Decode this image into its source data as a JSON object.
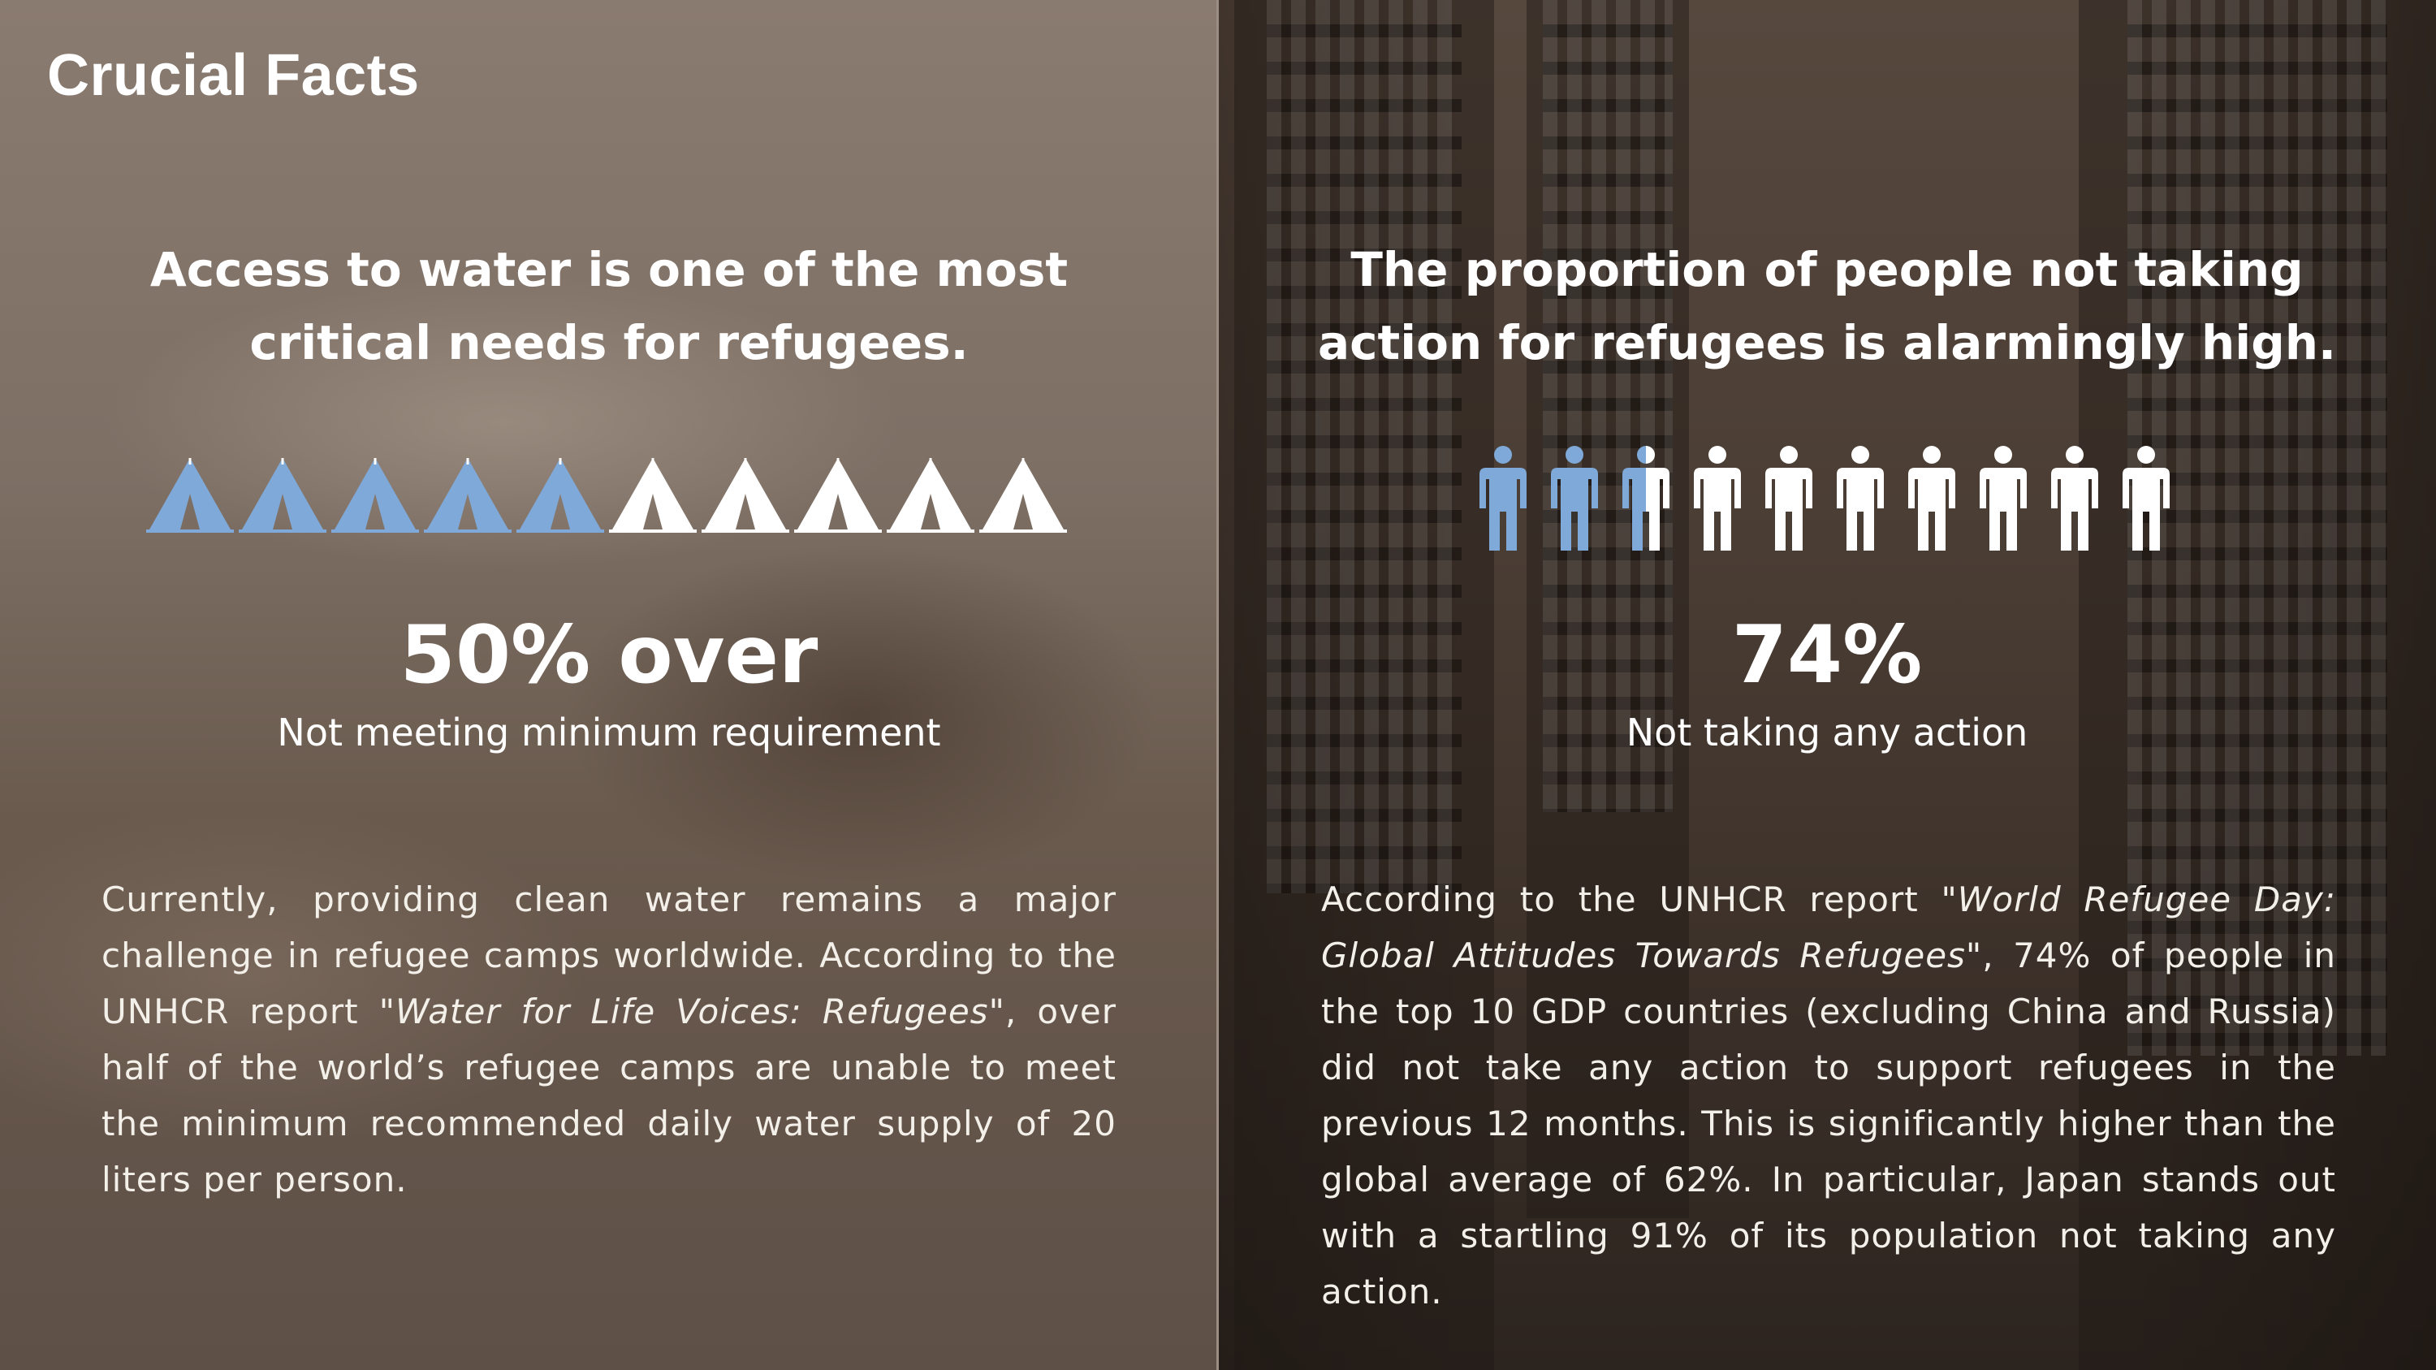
{
  "title": "Crucial Facts",
  "colors": {
    "accent": "#7ea9d9",
    "text": "#ffffff",
    "panel_left": "#7d6f64",
    "panel_right": "#4a3d34"
  },
  "left": {
    "heading_line1": "Access to water is one of the most",
    "heading_line2": "critical needs for refugees.",
    "icon": "tent-icon",
    "icon_total": 10,
    "icons_filled": 5,
    "stat": "50% over",
    "caption": "Not meeting minimum requirement",
    "body": {
      "before": "Currently, providing clean water remains a major challenge in refugee camps worldwide. According to the UNHCR report ",
      "source": "\"Water for Life Voices: Refugees\"",
      "after": ", over half of the world’s refugee camps are unable to meet the minimum recommended daily water supply of 20 liters per person."
    }
  },
  "right": {
    "heading_line1": "The proportion of people not taking",
    "heading_line2": "action for refugees is alarmingly high.",
    "icon": "person-icon",
    "icon_total": 10,
    "icons_filled": 2.5,
    "stat": "74%",
    "caption": "Not taking any action",
    "body": {
      "before": "According to the UNHCR report ",
      "source": "\"World Refugee Day: Global Attitudes Towards Refugees\"",
      "after": ", 74% of people in the top 10 GDP countries (excluding China and Russia) did not take any action to support refugees in the previous 12 months. This is significantly higher than the global average of 62%. In particular, Japan stands out with a startling 91% of its population not taking any action."
    }
  }
}
